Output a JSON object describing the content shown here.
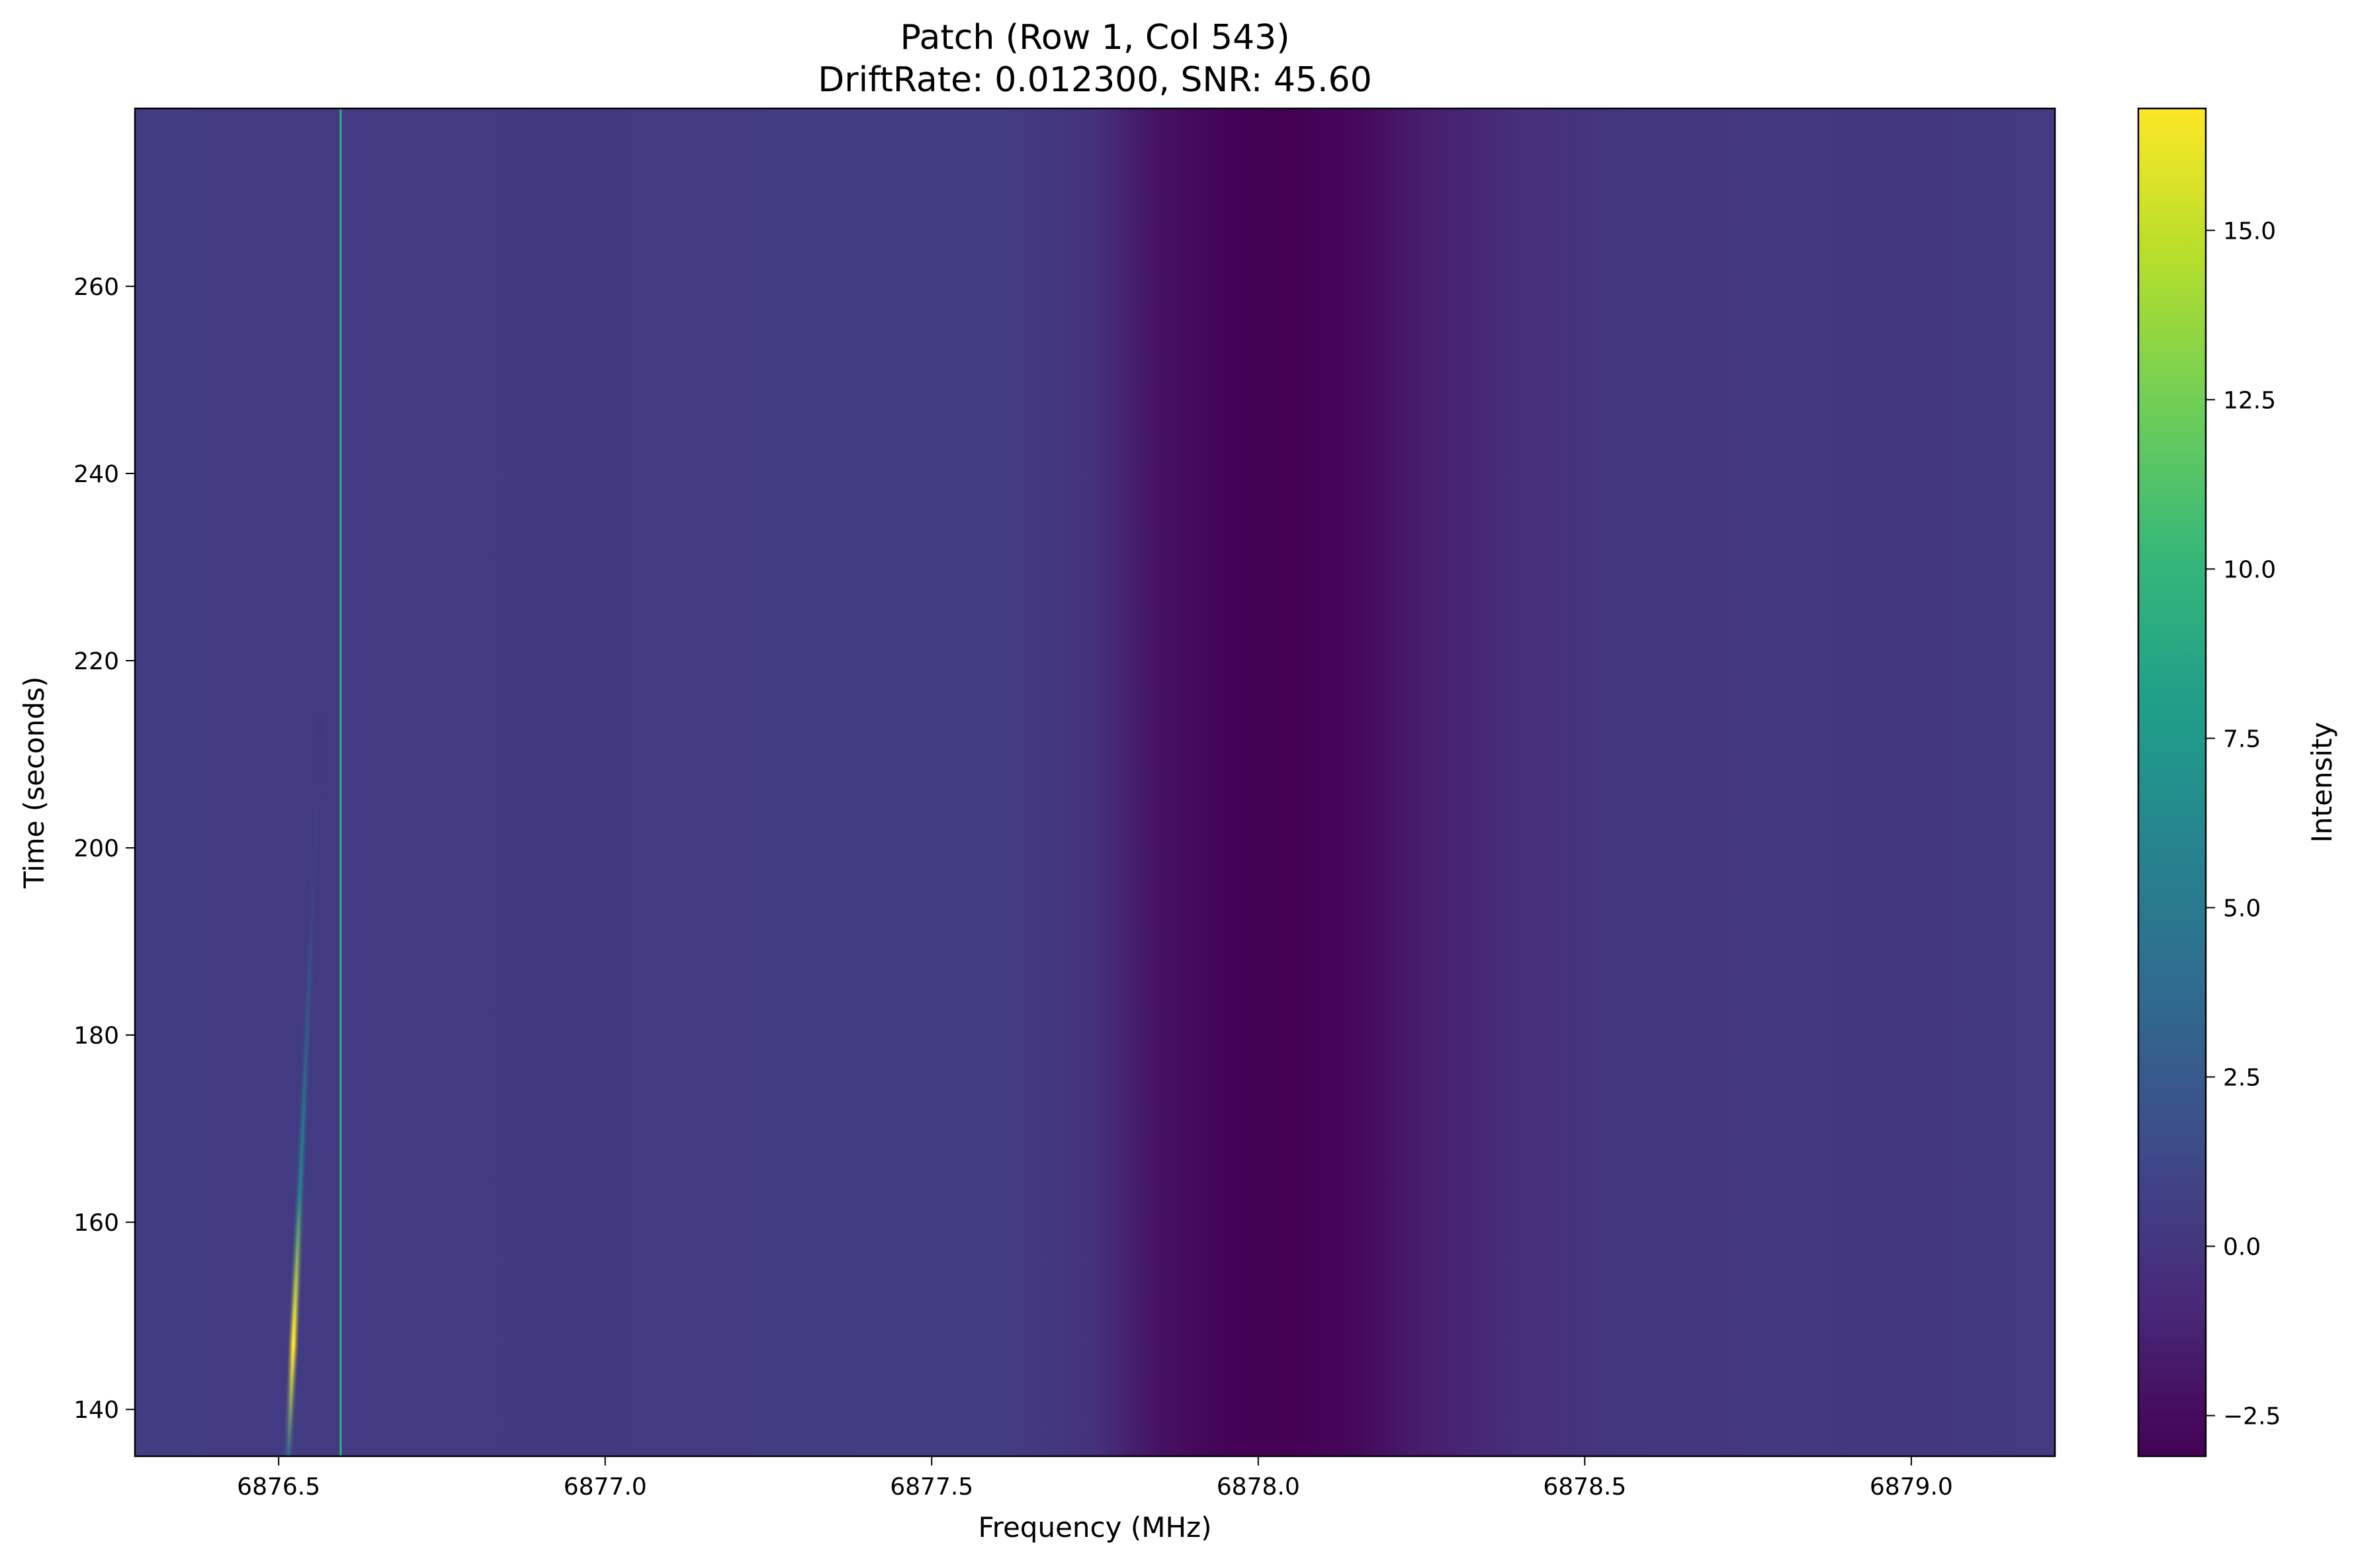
{
  "chart_data": {
    "type": "heatmap",
    "title": "Patch (Row 1, Col 543)",
    "subtitle": "DriftRate: 0.012300, SNR: 45.60",
    "xlabel": "Frequency (MHz)",
    "ylabel": "Time (seconds)",
    "colorbar_label": "Intensity",
    "colormap": "viridis",
    "xlim": [
      6876.28,
      6879.22
    ],
    "ylim": [
      135,
      279
    ],
    "clim": [
      -3.1,
      16.8
    ],
    "x_ticks": [
      6876.5,
      6877.0,
      6877.5,
      6878.0,
      6878.5,
      6879.0
    ],
    "x_tick_labels": [
      "6876.5",
      "6877.0",
      "6877.5",
      "6878.0",
      "6878.5",
      "6879.0"
    ],
    "y_ticks": [
      140,
      160,
      180,
      200,
      220,
      240,
      260
    ],
    "y_tick_labels": [
      "140",
      "160",
      "180",
      "200",
      "220",
      "240",
      "260"
    ],
    "colorbar_ticks": [
      -2.5,
      0.0,
      2.5,
      5.0,
      7.5,
      10.0,
      12.5,
      15.0
    ],
    "colorbar_tick_labels": [
      "−2.5",
      "0.0",
      "2.5",
      "5.0",
      "7.5",
      "10.0",
      "12.5",
      "15.0"
    ],
    "background_profile": {
      "frequency_mhz": [
        6876.28,
        6876.6,
        6877.0,
        6877.4,
        6877.6,
        6877.75,
        6877.85,
        6877.95,
        6878.05,
        6878.15,
        6878.25,
        6878.4,
        6878.6,
        6879.0,
        6879.22
      ],
      "intensity": [
        0.45,
        0.35,
        0.25,
        0.5,
        0.5,
        -0.3,
        -2.2,
        -3.0,
        -3.1,
        -2.7,
        -1.5,
        -0.4,
        0.1,
        0.2,
        0.3
      ]
    },
    "signals": [
      {
        "type": "drifting_line",
        "freq_start_mhz": 6876.515,
        "time_start_s": 135,
        "freq_end_mhz": 6876.565,
        "time_end_s": 215,
        "peak_intensity": 16.8,
        "peak_time_s": 147
      },
      {
        "type": "constant_line",
        "freq_mhz": 6876.595,
        "intensity": 10.0
      }
    ]
  }
}
